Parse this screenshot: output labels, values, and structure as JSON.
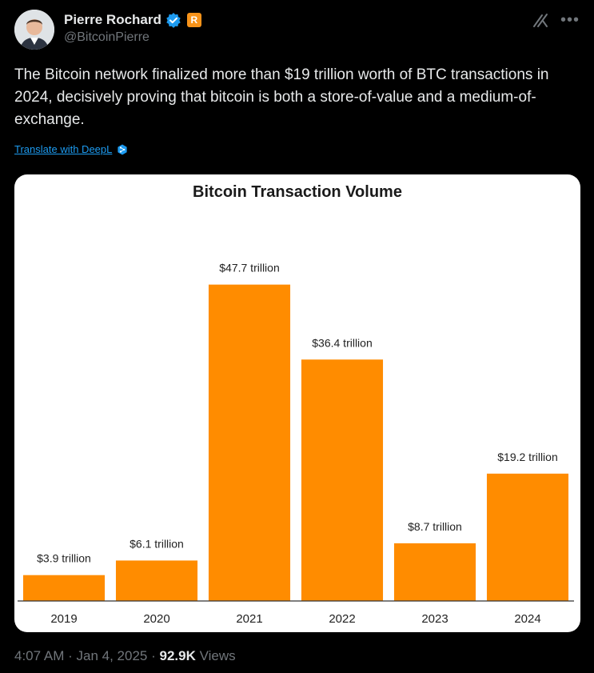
{
  "author": {
    "name": "Pierre Rochard",
    "handle": "@BitcoinPierre",
    "badge_letter": "R"
  },
  "tweet": {
    "text": "The Bitcoin network finalized more than $19 trillion worth of BTC transactions in 2024, decisively proving that bitcoin is both a store-of-value and a medium-of-exchange.",
    "translate_label": "Translate with DeepL"
  },
  "footer": {
    "time": "4:07 AM",
    "date": "Jan 4, 2025",
    "views_count": "92.9K",
    "views_label": "Views"
  },
  "colors": {
    "accent": "#1d9bf0",
    "bar": "#ff8c00",
    "brand": "#f7931a"
  },
  "icons": {
    "verified": "verified-badge-icon",
    "grok": "grok-icon",
    "more": "more-icon",
    "deepl": "deepl-icon"
  },
  "chart_data": {
    "type": "bar",
    "title": "Bitcoin Transaction Volume",
    "categories": [
      "2019",
      "2020",
      "2021",
      "2022",
      "2023",
      "2024"
    ],
    "values": [
      3.9,
      6.1,
      47.7,
      36.4,
      8.7,
      19.2
    ],
    "data_labels": [
      "$3.9 trillion",
      "$6.1 trillion",
      "$47.7 trillion",
      "$36.4 trillion",
      "$8.7 trillion",
      "$19.2 trillion"
    ],
    "ylim": [
      0,
      52
    ],
    "grid": false,
    "legend": "none"
  }
}
